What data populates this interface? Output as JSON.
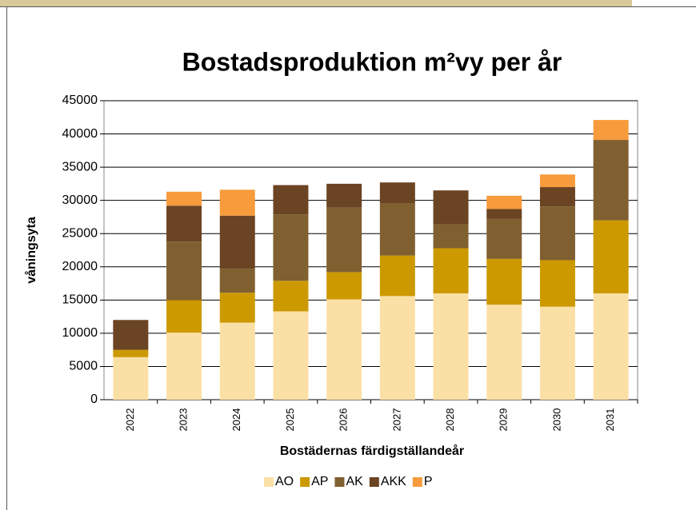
{
  "chart_data": {
    "type": "bar",
    "stacked": true,
    "title": "Bostadsproduktion m²vy per år",
    "x_label": "Bostädernas färdigställandeår",
    "y_label": "våningsyta",
    "categories": [
      "2022",
      "2023",
      "2024",
      "2025",
      "2026",
      "2027",
      "2028",
      "2029",
      "2030",
      "2031"
    ],
    "series": [
      {
        "name": "AO",
        "color": "#fbe0a6",
        "values": [
          6400,
          10100,
          11600,
          13300,
          15100,
          15600,
          16000,
          14300,
          14000,
          16000
        ]
      },
      {
        "name": "AP",
        "color": "#cc9900",
        "values": [
          1100,
          4900,
          4500,
          4600,
          4100,
          6100,
          6800,
          6900,
          7000,
          11000
        ]
      },
      {
        "name": "AK",
        "color": "#806030",
        "values": [
          0,
          8800,
          3600,
          10000,
          9700,
          7900,
          3600,
          6000,
          8100,
          12100
        ]
      },
      {
        "name": "AKK",
        "color": "#6b4423",
        "values": [
          4500,
          5400,
          8000,
          4400,
          3600,
          3100,
          5100,
          1500,
          2900,
          0
        ]
      },
      {
        "name": "P",
        "color": "#f79b3c",
        "values": [
          0,
          2100,
          3900,
          0,
          0,
          0,
          0,
          2000,
          1900,
          3000
        ]
      }
    ],
    "ylim": [
      0,
      45000
    ],
    "yticks": [
      0,
      5000,
      10000,
      15000,
      20000,
      25000,
      30000,
      35000,
      40000,
      45000
    ],
    "grid": true,
    "legend": "bottom"
  }
}
